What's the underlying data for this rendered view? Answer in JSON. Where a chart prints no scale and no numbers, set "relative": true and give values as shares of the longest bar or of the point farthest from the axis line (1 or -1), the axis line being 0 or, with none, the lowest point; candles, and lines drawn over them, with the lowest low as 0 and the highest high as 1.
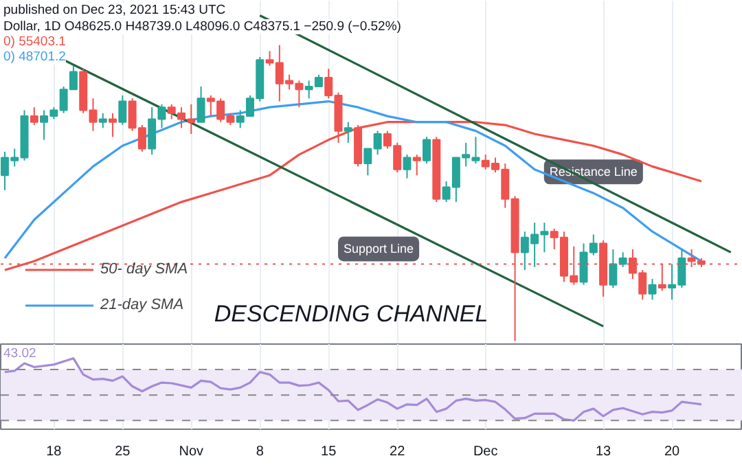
{
  "chart_data": [
    {
      "type": "candlestick",
      "relative": true,
      "grid": "x",
      "legend": "bottom left",
      "tick_labels": false,
      "xlim": [
        "2021-10-12T14:00",
        "2021-12-27T05:00"
      ],
      "xticks": [
        {
          "value": "2021-10-18",
          "label": null
        },
        {
          "value": "2021-10-25",
          "label": null
        },
        {
          "value": "2021-11-01",
          "label": null
        },
        {
          "value": "2021-11-08",
          "label": null
        },
        {
          "value": "2021-11-15",
          "label": null
        },
        {
          "value": "2021-11-22",
          "label": null
        },
        {
          "value": "2021-12-01",
          "label": null
        },
        {
          "value": "2021-12-13",
          "label": null
        },
        {
          "value": "2021-12-20",
          "label": null
        }
      ],
      "x": [
        "2021-10-13",
        "2021-10-14",
        "2021-10-15",
        "2021-10-16",
        "2021-10-17",
        "2021-10-18",
        "2021-10-19",
        "2021-10-20",
        "2021-10-21",
        "2021-10-22",
        "2021-10-23",
        "2021-10-24",
        "2021-10-25",
        "2021-10-26",
        "2021-10-27",
        "2021-10-28",
        "2021-10-29",
        "2021-10-30",
        "2021-10-31",
        "2021-11-01",
        "2021-11-02",
        "2021-11-03",
        "2021-11-04",
        "2021-11-05",
        "2021-11-06",
        "2021-11-07",
        "2021-11-08",
        "2021-11-09",
        "2021-11-10",
        "2021-11-11",
        "2021-11-12",
        "2021-11-13",
        "2021-11-14",
        "2021-11-15",
        "2021-11-16",
        "2021-11-17",
        "2021-11-18",
        "2021-11-19",
        "2021-11-20",
        "2021-11-21",
        "2021-11-22",
        "2021-11-23",
        "2021-11-24",
        "2021-11-25",
        "2021-11-26",
        "2021-11-27",
        "2021-11-28",
        "2021-11-29",
        "2021-11-30",
        "2021-12-01",
        "2021-12-02",
        "2021-12-03",
        "2021-12-04",
        "2021-12-05",
        "2021-12-06",
        "2021-12-07",
        "2021-12-08",
        "2021-12-09",
        "2021-12-10",
        "2021-12-11",
        "2021-12-12",
        "2021-12-13",
        "2021-12-14",
        "2021-12-15",
        "2021-12-16",
        "2021-12-17",
        "2021-12-18",
        "2021-12-19",
        "2021-12-20",
        "2021-12-21",
        "2021-12-22",
        "2021-12-23"
      ],
      "ohlc": [
        [
          0.56,
          0.64,
          0.51,
          0.62
        ],
        [
          0.61,
          0.65,
          0.59,
          0.62
        ],
        [
          0.62,
          0.78,
          0.61,
          0.76
        ],
        [
          0.76,
          0.79,
          0.73,
          0.74
        ],
        [
          0.74,
          0.78,
          0.68,
          0.76
        ],
        [
          0.76,
          0.79,
          0.75,
          0.78
        ],
        [
          0.78,
          0.86,
          0.77,
          0.85
        ],
        [
          0.85,
          0.93,
          0.85,
          0.91
        ],
        [
          0.91,
          0.92,
          0.77,
          0.78
        ],
        [
          0.78,
          0.82,
          0.71,
          0.74
        ],
        [
          0.74,
          0.77,
          0.72,
          0.75
        ],
        [
          0.75,
          0.77,
          0.69,
          0.74
        ],
        [
          0.74,
          0.83,
          0.73,
          0.81
        ],
        [
          0.81,
          0.82,
          0.71,
          0.72
        ],
        [
          0.72,
          0.73,
          0.64,
          0.65
        ],
        [
          0.65,
          0.79,
          0.63,
          0.75
        ],
        [
          0.75,
          0.8,
          0.72,
          0.79
        ],
        [
          0.79,
          0.8,
          0.75,
          0.77
        ],
        [
          0.77,
          0.79,
          0.72,
          0.75
        ],
        [
          0.75,
          0.8,
          0.7,
          0.74
        ],
        [
          0.74,
          0.86,
          0.74,
          0.82
        ],
        [
          0.82,
          0.83,
          0.76,
          0.81
        ],
        [
          0.81,
          0.82,
          0.74,
          0.75
        ],
        [
          0.76,
          0.77,
          0.73,
          0.74
        ],
        [
          0.74,
          0.78,
          0.72,
          0.76
        ],
        [
          0.76,
          0.83,
          0.76,
          0.82
        ],
        [
          0.82,
          0.96,
          0.81,
          0.95
        ],
        [
          0.95,
          0.98,
          0.93,
          0.94
        ],
        [
          0.94,
          1.0,
          0.81,
          0.87
        ],
        [
          0.88,
          0.9,
          0.85,
          0.87
        ],
        [
          0.87,
          0.88,
          0.79,
          0.85
        ],
        [
          0.85,
          0.88,
          0.82,
          0.86
        ],
        [
          0.86,
          0.9,
          0.86,
          0.89
        ],
        [
          0.89,
          0.92,
          0.82,
          0.83
        ],
        [
          0.83,
          0.84,
          0.67,
          0.71
        ],
        [
          0.71,
          0.74,
          0.67,
          0.72
        ],
        [
          0.72,
          0.73,
          0.59,
          0.6
        ],
        [
          0.6,
          0.65,
          0.56,
          0.65
        ],
        [
          0.65,
          0.71,
          0.63,
          0.7
        ],
        [
          0.7,
          0.71,
          0.65,
          0.66
        ],
        [
          0.66,
          0.67,
          0.57,
          0.58
        ],
        [
          0.58,
          0.63,
          0.55,
          0.62
        ],
        [
          0.62,
          0.63,
          0.56,
          0.61
        ],
        [
          0.61,
          0.69,
          0.6,
          0.68
        ],
        [
          0.68,
          0.69,
          0.47,
          0.48
        ],
        [
          0.48,
          0.54,
          0.47,
          0.52
        ],
        [
          0.52,
          0.62,
          0.47,
          0.62
        ],
        [
          0.62,
          0.67,
          0.59,
          0.63
        ],
        [
          0.61,
          0.69,
          0.6,
          0.62
        ],
        [
          0.61,
          0.63,
          0.58,
          0.59
        ],
        [
          0.6,
          0.62,
          0.57,
          0.58
        ],
        [
          0.58,
          0.6,
          0.45,
          0.48
        ],
        [
          0.48,
          0.49,
          0.0,
          0.3
        ],
        [
          0.3,
          0.37,
          0.24,
          0.35
        ],
        [
          0.33,
          0.4,
          0.25,
          0.36
        ],
        [
          0.36,
          0.4,
          0.3,
          0.37
        ],
        [
          0.37,
          0.38,
          0.31,
          0.35
        ],
        [
          0.35,
          0.37,
          0.2,
          0.22
        ],
        [
          0.22,
          0.32,
          0.19,
          0.2
        ],
        [
          0.2,
          0.33,
          0.19,
          0.3
        ],
        [
          0.3,
          0.36,
          0.29,
          0.33
        ],
        [
          0.33,
          0.34,
          0.15,
          0.19
        ],
        [
          0.19,
          0.31,
          0.18,
          0.26
        ],
        [
          0.26,
          0.3,
          0.25,
          0.28
        ],
        [
          0.28,
          0.31,
          0.21,
          0.23
        ],
        [
          0.23,
          0.24,
          0.14,
          0.16
        ],
        [
          0.16,
          0.21,
          0.14,
          0.19
        ],
        [
          0.19,
          0.26,
          0.17,
          0.18
        ],
        [
          0.18,
          0.26,
          0.14,
          0.19
        ],
        [
          0.19,
          0.31,
          0.18,
          0.28
        ],
        [
          0.28,
          0.31,
          0.25,
          0.27
        ],
        [
          0.27,
          0.28,
          0.25,
          0.26
        ]
      ],
      "series": [
        {
          "type": "line",
          "name": "50- day SMA",
          "color": "#f0524a",
          "x": [
            "2021-10-13",
            "2021-10-16",
            "2021-10-19",
            "2021-10-22",
            "2021-10-25",
            "2021-10-28",
            "2021-10-31",
            "2021-11-03",
            "2021-11-06",
            "2021-11-09",
            "2021-11-12",
            "2021-11-15",
            "2021-11-18",
            "2021-11-21",
            "2021-11-24",
            "2021-11-27",
            "2021-11-30",
            "2021-12-03",
            "2021-12-06",
            "2021-12-09",
            "2021-12-12",
            "2021-12-15",
            "2021-12-18",
            "2021-12-21",
            "2021-12-23"
          ],
          "values": [
            0.24,
            0.27,
            0.31,
            0.35,
            0.39,
            0.43,
            0.47,
            0.5,
            0.53,
            0.56,
            0.63,
            0.68,
            0.72,
            0.74,
            0.74,
            0.74,
            0.74,
            0.73,
            0.7,
            0.68,
            0.66,
            0.63,
            0.59,
            0.56,
            0.54
          ]
        },
        {
          "type": "line",
          "name": "21-day SMA",
          "color": "#3d9ef0",
          "x": [
            "2021-10-13",
            "2021-10-16",
            "2021-10-19",
            "2021-10-22",
            "2021-10-25",
            "2021-10-28",
            "2021-10-31",
            "2021-11-03",
            "2021-11-06",
            "2021-11-09",
            "2021-11-12",
            "2021-11-15",
            "2021-11-18",
            "2021-11-21",
            "2021-11-24",
            "2021-11-27",
            "2021-11-30",
            "2021-12-03",
            "2021-12-06",
            "2021-12-09",
            "2021-12-12",
            "2021-12-15",
            "2021-12-18",
            "2021-12-21",
            "2021-12-23"
          ],
          "values": [
            0.28,
            0.41,
            0.5,
            0.59,
            0.66,
            0.7,
            0.74,
            0.76,
            0.77,
            0.79,
            0.8,
            0.81,
            0.79,
            0.76,
            0.74,
            0.74,
            0.71,
            0.66,
            0.58,
            0.54,
            0.5,
            0.45,
            0.37,
            0.31,
            0.27
          ]
        },
        {
          "type": "line",
          "color": "#23633f",
          "x": [
            "2021-10-19",
            "2021-12-13"
          ],
          "values": [
            0.95,
            0.05
          ]
        },
        {
          "type": "line",
          "color": "#23633f",
          "x": [
            "2021-11-08",
            "2021-12-26"
          ],
          "values": [
            1.1,
            0.3
          ]
        }
      ],
      "ref_lines": [
        {
          "axis": "y",
          "value": 0.26,
          "color": "#f0524a",
          "line_style": "dotted"
        }
      ],
      "annotations": [
        "published on Dec 23, 2021 15:43 UTC",
        "Dollar, 1D O48625.0 H48739.0 L48096.0 C48375.1 −250.9 (−0.52%)",
        "0) 55403.1",
        "0) 48701.2",
        "DESCENDING CHANNEL",
        {
          "text": "Support Line",
          "x": "2021-11-18",
          "y": 0.46
        },
        {
          "text": "Resistance Line",
          "x": "2021-12-12",
          "y": 0.53
        }
      ]
    },
    {
      "type": "line",
      "relative": true,
      "grid": "x",
      "tick_labels": "x",
      "xlim": [
        "2021-10-12T14:00",
        "2021-12-27T05:00"
      ],
      "xticks": [
        {
          "value": "2021-10-18",
          "label": "18"
        },
        {
          "value": "2021-10-25",
          "label": "25"
        },
        {
          "value": "2021-11-01",
          "label": "Nov"
        },
        {
          "value": "2021-11-08",
          "label": "8"
        },
        {
          "value": "2021-11-15",
          "label": "15"
        },
        {
          "value": "2021-11-22",
          "label": "22"
        },
        {
          "value": "2021-12-01",
          "label": "Dec"
        },
        {
          "value": "2021-12-13",
          "label": "13"
        },
        {
          "value": "2021-12-20",
          "label": "20"
        }
      ],
      "x": [
        "2021-10-13",
        "2021-10-14",
        "2021-10-15",
        "2021-10-16",
        "2021-10-18",
        "2021-10-20",
        "2021-10-21",
        "2021-10-22",
        "2021-10-23",
        "2021-10-24",
        "2021-10-25",
        "2021-10-26",
        "2021-10-27",
        "2021-10-28",
        "2021-10-29",
        "2021-10-30",
        "2021-11-01",
        "2021-11-02",
        "2021-11-03",
        "2021-11-04",
        "2021-11-05",
        "2021-11-06",
        "2021-11-07",
        "2021-11-08",
        "2021-11-09",
        "2021-11-10",
        "2021-11-11",
        "2021-11-12",
        "2021-11-13",
        "2021-11-14",
        "2021-11-15",
        "2021-11-16",
        "2021-11-17",
        "2021-11-18",
        "2021-11-19",
        "2021-11-20",
        "2021-11-21",
        "2021-11-22",
        "2021-11-23",
        "2021-11-24",
        "2021-11-25",
        "2021-11-26",
        "2021-11-27",
        "2021-11-28",
        "2021-11-29",
        "2021-11-30",
        "2021-12-01",
        "2021-12-02",
        "2021-12-03",
        "2021-12-04",
        "2021-12-05",
        "2021-12-06",
        "2021-12-07",
        "2021-12-08",
        "2021-12-09",
        "2021-12-10",
        "2021-12-11",
        "2021-12-12",
        "2021-12-13",
        "2021-12-14",
        "2021-12-15",
        "2021-12-16",
        "2021-12-17",
        "2021-12-18",
        "2021-12-19",
        "2021-12-20",
        "2021-12-21",
        "2021-12-22",
        "2021-12-23"
      ],
      "series": [
        {
          "color": "#a58ad8",
          "values": [
            0.78,
            0.8,
            0.92,
            0.86,
            0.9,
            1.0,
            0.74,
            0.66,
            0.67,
            0.64,
            0.71,
            0.55,
            0.47,
            0.55,
            0.61,
            0.6,
            0.53,
            0.64,
            0.62,
            0.52,
            0.5,
            0.53,
            0.61,
            0.78,
            0.74,
            0.61,
            0.61,
            0.56,
            0.57,
            0.61,
            0.49,
            0.31,
            0.32,
            0.17,
            0.25,
            0.34,
            0.29,
            0.19,
            0.26,
            0.25,
            0.35,
            0.14,
            0.19,
            0.32,
            0.35,
            0.32,
            0.33,
            0.3,
            0.18,
            0.03,
            0.04,
            0.11,
            0.11,
            0.11,
            0.02,
            0.0,
            0.14,
            0.19,
            0.07,
            0.17,
            0.2,
            0.15,
            0.1,
            0.14,
            0.13,
            0.16,
            0.3,
            0.28,
            0.26
          ]
        }
      ],
      "bands": [
        {
          "axis": "y",
          "from": 0.0,
          "to": 0.82,
          "color": "#efe9f8"
        }
      ],
      "ref_lines": [
        {
          "axis": "y",
          "value": 0.82,
          "color": "#888888",
          "line_style": "dashed"
        },
        {
          "axis": "y",
          "value": 0.41,
          "color": "#888888",
          "line_style": "dashed"
        },
        {
          "axis": "y",
          "value": 0.0,
          "color": "#888888",
          "line_style": "dashed"
        }
      ],
      "annotations": [
        "43.02"
      ]
    }
  ]
}
